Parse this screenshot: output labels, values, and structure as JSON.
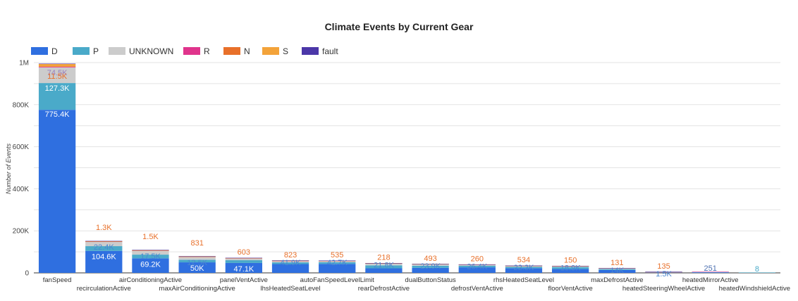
{
  "chart_data": {
    "type": "bar",
    "stacked": true,
    "title": "Climate Events by Current Gear",
    "xlabel": "",
    "ylabel": "Number of Events",
    "ylim": [
      0,
      1000000
    ],
    "yticks": [
      0,
      200000,
      400000,
      600000,
      800000,
      1000000
    ],
    "ytick_labels": [
      "0",
      "200K",
      "400K",
      "600K",
      "800K",
      "1M"
    ],
    "grid": true,
    "legend_position": "top-left",
    "categories": [
      "fanSpeed",
      "recirculationActive",
      "airConditioningActive",
      "maxAirConditioningActive",
      "panelVentActive",
      "lhsHeatedSeatLevel",
      "autoFanSpeedLevelLimit",
      "rearDefrostActive",
      "dualButtonStatus",
      "defrostVentActive",
      "rhsHeatedSeatLevel",
      "floorVentActive",
      "maxDefrostActive",
      "heatedSteeringWheelActive",
      "heatedMirrorActive",
      "heatedWindshieldActive"
    ],
    "series": [
      {
        "name": "D",
        "color": "#2f6fe0",
        "values": [
          775400,
          104600,
          69200,
          50000,
          47100,
          41900,
          42700,
          21800,
          23900,
          26400,
          22300,
          18900,
          14000,
          1500,
          2500,
          0
        ]
      },
      {
        "name": "P",
        "color": "#4aaac9",
        "values": [
          127300,
          22400,
          17500,
          12500,
          13000,
          8000,
          8000,
          14000,
          10000,
          7500,
          6000,
          8000,
          4000,
          500,
          1000,
          8
        ]
      },
      {
        "name": "UNKNOWN",
        "color": "#cccccc",
        "values": [
          74500,
          20000,
          18000,
          13000,
          8000,
          6000,
          5000,
          8000,
          6000,
          4000,
          4000,
          3500,
          2000,
          500,
          0,
          0
        ]
      },
      {
        "name": "R",
        "color": "#e0348c",
        "values": [
          3000,
          500,
          400,
          300,
          300,
          200,
          200,
          200,
          200,
          150,
          150,
          150,
          100,
          50,
          1,
          0
        ]
      },
      {
        "name": "N",
        "color": "#e8702a",
        "values": [
          1500,
          1200,
          1000,
          800,
          600,
          800,
          500,
          300,
          400,
          300,
          300,
          200,
          150,
          50,
          0,
          0
        ]
      },
      {
        "name": "S",
        "color": "#f3a33a",
        "values": [
          11500,
          1300,
          1500,
          1100,
          700,
          500,
          300,
          300,
          400,
          200,
          200,
          200,
          100,
          1000,
          0,
          0
        ]
      },
      {
        "name": "fault",
        "color": "#4b37a8",
        "values": [
          100,
          20,
          20,
          10,
          10,
          10,
          10,
          10,
          10,
          10,
          10,
          10,
          10,
          5,
          0,
          0
        ]
      }
    ],
    "data_labels": [
      {
        "cat": 0,
        "texts": [
          "775.4K",
          "127.3K",
          "74.5K",
          "11.5K"
        ]
      },
      {
        "cat": 1,
        "texts": [
          "104.6K",
          "22.4K",
          "1.3K"
        ]
      },
      {
        "cat": 2,
        "texts": [
          "69.2K",
          "17.5K",
          "1.5K"
        ]
      },
      {
        "cat": 3,
        "texts": [
          "50K",
          "12.5K",
          "831"
        ]
      },
      {
        "cat": 4,
        "texts": [
          "47.1K",
          "603"
        ]
      },
      {
        "cat": 5,
        "texts": [
          "41.9K",
          "823"
        ]
      },
      {
        "cat": 6,
        "texts": [
          "42.7K",
          "535"
        ]
      },
      {
        "cat": 7,
        "texts": [
          "21.8K",
          "218"
        ]
      },
      {
        "cat": 8,
        "texts": [
          "23.9K",
          "493"
        ]
      },
      {
        "cat": 9,
        "texts": [
          "26.4K",
          "260"
        ]
      },
      {
        "cat": 10,
        "texts": [
          "22.3K",
          "534"
        ]
      },
      {
        "cat": 11,
        "texts": [
          "18.9K",
          "150"
        ]
      },
      {
        "cat": 12,
        "texts": [
          "14K",
          "131"
        ]
      },
      {
        "cat": 13,
        "texts": [
          "1.5K",
          "135"
        ]
      },
      {
        "cat": 14,
        "texts": [
          "251"
        ]
      },
      {
        "cat": 15,
        "texts": [
          "8"
        ]
      }
    ]
  }
}
